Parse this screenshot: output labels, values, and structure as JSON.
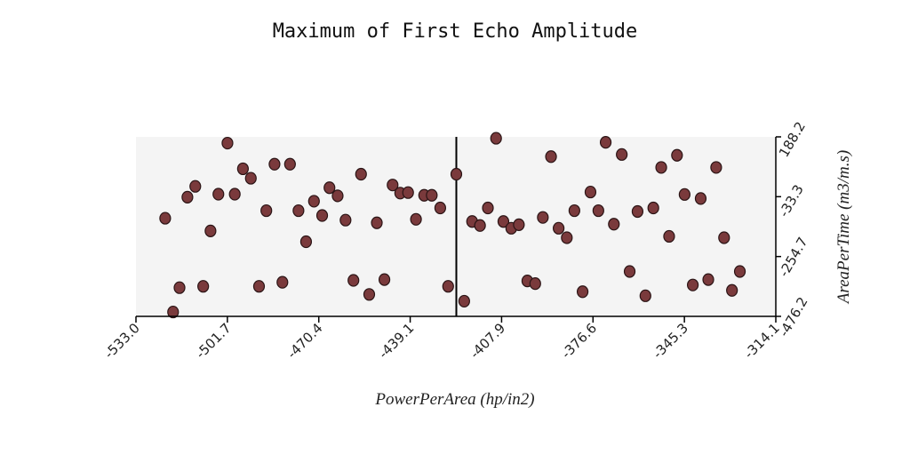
{
  "chart_data": {
    "type": "scatter",
    "title": "Maximum of First Echo Amplitude",
    "xlabel": "PowerPerArea (hp/in2)",
    "ylabel": "AreaPerTime (m3/m.s)",
    "xlim": [
      -533.0,
      -314.1
    ],
    "ylim": [
      -476.2,
      188.2
    ],
    "x_ticks": [
      "-533.0",
      "-501.7",
      "-470.4",
      "-439.1",
      "-407.9",
      "-376.6",
      "-345.3",
      "-314.1"
    ],
    "y_ticks": [
      "188.2",
      "-33.3",
      "-254.7",
      "-476.2"
    ],
    "vertical_line_x": -423.4,
    "grid": false,
    "colors": {
      "marker_fill": "#7a3a3c",
      "marker_edge": "#2a1415",
      "plot_bg": "#f4f4f4"
    },
    "points": [
      {
        "x": -523.0,
        "y": -113
      },
      {
        "x": -520.3,
        "y": -460
      },
      {
        "x": -518.1,
        "y": -370
      },
      {
        "x": -515.4,
        "y": -35
      },
      {
        "x": -512.7,
        "y": 5
      },
      {
        "x": -510.0,
        "y": -365
      },
      {
        "x": -507.5,
        "y": -160
      },
      {
        "x": -504.8,
        "y": -24
      },
      {
        "x": -501.7,
        "y": 165
      },
      {
        "x": -499.2,
        "y": -24
      },
      {
        "x": -496.4,
        "y": 70
      },
      {
        "x": -493.7,
        "y": 35
      },
      {
        "x": -490.9,
        "y": -365
      },
      {
        "x": -488.4,
        "y": -85
      },
      {
        "x": -485.6,
        "y": 87
      },
      {
        "x": -482.9,
        "y": -350
      },
      {
        "x": -480.3,
        "y": 87
      },
      {
        "x": -477.4,
        "y": -85
      },
      {
        "x": -474.8,
        "y": -200
      },
      {
        "x": -472.1,
        "y": -50
      },
      {
        "x": -469.3,
        "y": -103
      },
      {
        "x": -466.8,
        "y": 0
      },
      {
        "x": -464.0,
        "y": -30
      },
      {
        "x": -461.3,
        "y": -120
      },
      {
        "x": -458.6,
        "y": -343
      },
      {
        "x": -456.0,
        "y": 50
      },
      {
        "x": -453.2,
        "y": -395
      },
      {
        "x": -450.6,
        "y": -130
      },
      {
        "x": -448.0,
        "y": -340
      },
      {
        "x": -445.2,
        "y": 10
      },
      {
        "x": -442.6,
        "y": -20
      },
      {
        "x": -439.9,
        "y": -18
      },
      {
        "x": -437.2,
        "y": -117
      },
      {
        "x": -434.4,
        "y": -28
      },
      {
        "x": -431.8,
        "y": -28
      },
      {
        "x": -428.9,
        "y": -75
      },
      {
        "x": -426.2,
        "y": -365
      },
      {
        "x": -423.4,
        "y": 50
      },
      {
        "x": -420.7,
        "y": -420
      },
      {
        "x": -418.0,
        "y": -125
      },
      {
        "x": -415.3,
        "y": -140
      },
      {
        "x": -412.6,
        "y": -75
      },
      {
        "x": -409.8,
        "y": 183
      },
      {
        "x": -407.3,
        "y": -125
      },
      {
        "x": -404.6,
        "y": -150
      },
      {
        "x": -402.0,
        "y": -137
      },
      {
        "x": -399.1,
        "y": -345
      },
      {
        "x": -396.4,
        "y": -355
      },
      {
        "x": -393.8,
        "y": -110
      },
      {
        "x": -391.0,
        "y": 115
      },
      {
        "x": -388.4,
        "y": -150
      },
      {
        "x": -385.6,
        "y": -185
      },
      {
        "x": -383.0,
        "y": -85
      },
      {
        "x": -380.2,
        "y": -385
      },
      {
        "x": -377.5,
        "y": -16
      },
      {
        "x": -374.8,
        "y": -85
      },
      {
        "x": -372.3,
        "y": 168
      },
      {
        "x": -369.5,
        "y": -135
      },
      {
        "x": -366.8,
        "y": 123
      },
      {
        "x": -364.1,
        "y": -310
      },
      {
        "x": -361.4,
        "y": -88
      },
      {
        "x": -358.7,
        "y": -400
      },
      {
        "x": -356.0,
        "y": -75
      },
      {
        "x": -353.3,
        "y": 75
      },
      {
        "x": -350.6,
        "y": -180
      },
      {
        "x": -347.9,
        "y": 120
      },
      {
        "x": -345.3,
        "y": -25
      },
      {
        "x": -342.5,
        "y": -360
      },
      {
        "x": -339.8,
        "y": -40
      },
      {
        "x": -337.2,
        "y": -340
      },
      {
        "x": -334.5,
        "y": 75
      },
      {
        "x": -331.8,
        "y": -185
      },
      {
        "x": -329.1,
        "y": -380
      },
      {
        "x": -326.4,
        "y": -310
      }
    ]
  }
}
